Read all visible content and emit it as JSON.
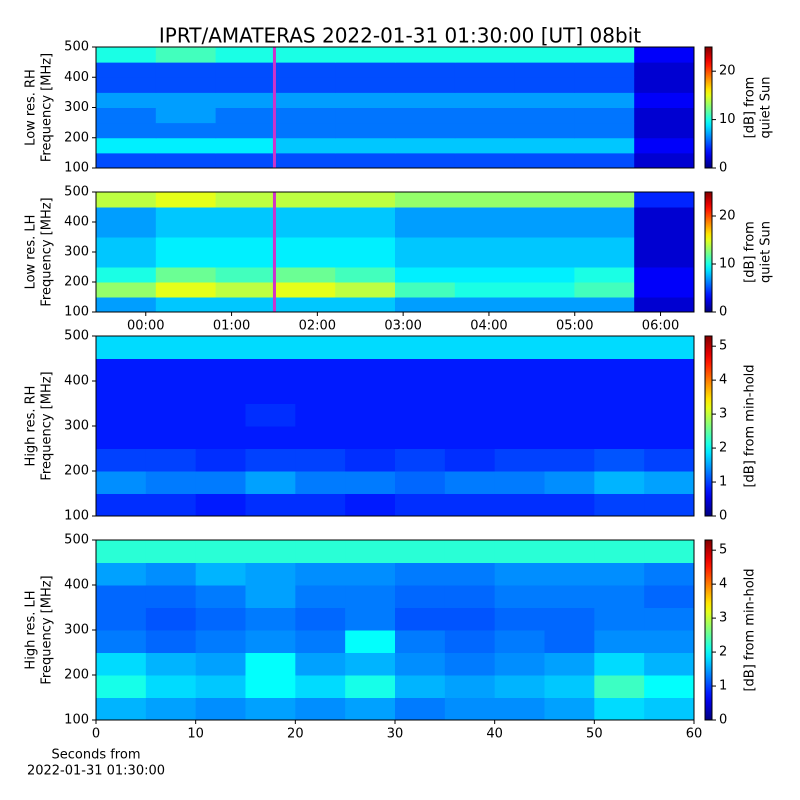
{
  "chart_data": [
    {
      "type": "heatmap",
      "title": "IPRT/AMATERAS 2022-01-31 01:30:00 [UT]   08bit",
      "ylabel": [
        "Low res. RH",
        "Frequency [MHz]"
      ],
      "ylim": [
        100,
        500
      ],
      "yticks": [
        100,
        200,
        300,
        400,
        500
      ],
      "xlim": [
        -0.58,
        6.39
      ],
      "marker_x": 1.5,
      "marker_color": "#cc33cc",
      "colormap": "jet",
      "colorbar": {
        "label": [
          "[dB] from",
          "quiet Sun"
        ],
        "lim": [
          0,
          25
        ],
        "ticks": [
          0,
          10,
          20
        ]
      },
      "z": [
        [
          5,
          5,
          5,
          5,
          5,
          5,
          5,
          5,
          5,
          2
        ],
        [
          9,
          9,
          9,
          8,
          8,
          8,
          8,
          8,
          8,
          3
        ],
        [
          6,
          6,
          6,
          6,
          6,
          6,
          6,
          6,
          6,
          2
        ],
        [
          6,
          7,
          6,
          6,
          6,
          6,
          6,
          6,
          6,
          2
        ],
        [
          7,
          7,
          7,
          7,
          7,
          7,
          7,
          7,
          7,
          3
        ],
        [
          5,
          5,
          5,
          5,
          5,
          5,
          5,
          5,
          5,
          2
        ],
        [
          5,
          5,
          5,
          5,
          5,
          5,
          5,
          5,
          5,
          2
        ],
        [
          10,
          11,
          10,
          10,
          10,
          10,
          10,
          10,
          10,
          3
        ]
      ]
    },
    {
      "type": "heatmap",
      "ylabel": [
        "Low res. LH",
        "Frequency [MHz]"
      ],
      "ylim": [
        100,
        500
      ],
      "yticks": [
        100,
        200,
        300,
        400,
        500
      ],
      "xlim": [
        -0.58,
        6.39
      ],
      "xticks": [
        {
          "value": 0,
          "label": "00:00"
        },
        {
          "value": 1,
          "label": "01:00"
        },
        {
          "value": 2,
          "label": "02:00"
        },
        {
          "value": 3,
          "label": "03:00"
        },
        {
          "value": 4,
          "label": "04:00"
        },
        {
          "value": 5,
          "label": "05:00"
        },
        {
          "value": 6,
          "label": "06:00"
        }
      ],
      "marker_x": 1.5,
      "marker_color": "#cc33cc",
      "colormap": "jet",
      "colorbar": {
        "label": [
          "[dB] from",
          "quiet Sun"
        ],
        "lim": [
          0,
          25
        ],
        "ticks": [
          0,
          10,
          20
        ]
      },
      "z": [
        [
          7,
          8,
          8,
          8,
          8,
          7,
          7,
          7,
          7,
          2
        ],
        [
          13,
          15,
          14,
          15,
          14,
          11,
          10,
          10,
          11,
          3
        ],
        [
          10,
          12,
          11,
          12,
          11,
          9,
          9,
          9,
          10,
          3
        ],
        [
          8,
          9,
          9,
          9,
          9,
          8,
          8,
          8,
          8,
          2
        ],
        [
          8,
          9,
          9,
          9,
          9,
          8,
          8,
          8,
          8,
          2
        ],
        [
          7,
          8,
          8,
          8,
          8,
          7,
          7,
          7,
          7,
          2
        ],
        [
          7,
          8,
          8,
          8,
          8,
          7,
          7,
          7,
          7,
          2
        ],
        [
          14,
          15,
          14,
          14,
          14,
          13,
          13,
          13,
          13,
          4
        ]
      ]
    },
    {
      "type": "heatmap",
      "ylabel": [
        "High res. RH",
        "Frequency [MHz]"
      ],
      "ylim": [
        100,
        500
      ],
      "yticks": [
        100,
        200,
        300,
        400,
        500
      ],
      "xlim": [
        0,
        60
      ],
      "colormap": "jet",
      "colorbar": {
        "label": [
          "[dB] from min-hold"
        ],
        "lim": [
          0,
          5.3
        ],
        "ticks": [
          0,
          1,
          2,
          3,
          4,
          5
        ]
      },
      "z": [
        [
          0.9,
          0.9,
          0.8,
          0.9,
          0.9,
          0.8,
          0.9,
          0.9,
          0.9,
          0.9,
          1.0,
          1.0
        ],
        [
          1.4,
          1.3,
          1.3,
          1.5,
          1.3,
          1.3,
          1.2,
          1.3,
          1.3,
          1.4,
          1.6,
          1.5
        ],
        [
          1.0,
          1.0,
          0.9,
          1.0,
          1.0,
          0.9,
          1.0,
          0.9,
          1.0,
          1.0,
          1.1,
          1.0
        ],
        [
          0.8,
          0.8,
          0.8,
          0.8,
          0.8,
          0.8,
          0.8,
          0.8,
          0.8,
          0.8,
          0.8,
          0.8
        ],
        [
          0.8,
          0.8,
          0.8,
          0.9,
          0.8,
          0.8,
          0.8,
          0.8,
          0.8,
          0.8,
          0.8,
          0.8
        ],
        [
          0.8,
          0.8,
          0.8,
          0.8,
          0.8,
          0.8,
          0.8,
          0.8,
          0.8,
          0.8,
          0.8,
          0.8
        ],
        [
          0.8,
          0.8,
          0.8,
          0.8,
          0.8,
          0.8,
          0.8,
          0.8,
          0.8,
          0.8,
          0.8,
          0.8
        ],
        [
          1.8,
          1.8,
          1.8,
          1.8,
          1.8,
          1.8,
          1.8,
          1.8,
          1.8,
          1.8,
          1.8,
          1.8
        ]
      ]
    },
    {
      "type": "heatmap",
      "ylabel": [
        "High res. LH",
        "Frequency [MHz]"
      ],
      "ylim": [
        100,
        500
      ],
      "yticks": [
        100,
        200,
        300,
        400,
        500
      ],
      "xlim": [
        0,
        60
      ],
      "xticks": [
        0,
        10,
        20,
        30,
        40,
        50,
        60
      ],
      "xlabel": [
        "Seconds from",
        "2022-01-31 01:30:00"
      ],
      "colormap": "jet",
      "colorbar": {
        "label": [
          "[dB] from min-hold"
        ],
        "lim": [
          0,
          5.3
        ],
        "ticks": [
          0,
          1,
          2,
          3,
          4,
          5
        ]
      },
      "z": [
        [
          1.6,
          1.5,
          1.4,
          1.5,
          1.4,
          1.5,
          1.3,
          1.4,
          1.4,
          1.5,
          1.8,
          1.7
        ],
        [
          2.1,
          1.8,
          1.7,
          2.0,
          1.8,
          2.1,
          1.6,
          1.5,
          1.6,
          1.7,
          2.3,
          2.0
        ],
        [
          1.8,
          1.6,
          1.5,
          2.0,
          1.5,
          1.6,
          1.4,
          1.3,
          1.4,
          1.5,
          1.8,
          1.6
        ],
        [
          1.3,
          1.2,
          1.3,
          1.4,
          1.3,
          2.0,
          1.3,
          1.2,
          1.3,
          1.2,
          1.4,
          1.4
        ],
        [
          1.2,
          1.1,
          1.2,
          1.3,
          1.2,
          1.3,
          1.1,
          1.1,
          1.2,
          1.2,
          1.3,
          1.3
        ],
        [
          1.2,
          1.2,
          1.3,
          1.5,
          1.3,
          1.3,
          1.2,
          1.2,
          1.3,
          1.3,
          1.3,
          1.2
        ],
        [
          1.5,
          1.4,
          1.6,
          1.5,
          1.4,
          1.4,
          1.3,
          1.3,
          1.4,
          1.4,
          1.4,
          1.3
        ],
        [
          2.2,
          2.2,
          2.2,
          2.2,
          2.2,
          2.2,
          2.2,
          2.2,
          2.2,
          2.2,
          2.2,
          2.2
        ]
      ]
    }
  ]
}
